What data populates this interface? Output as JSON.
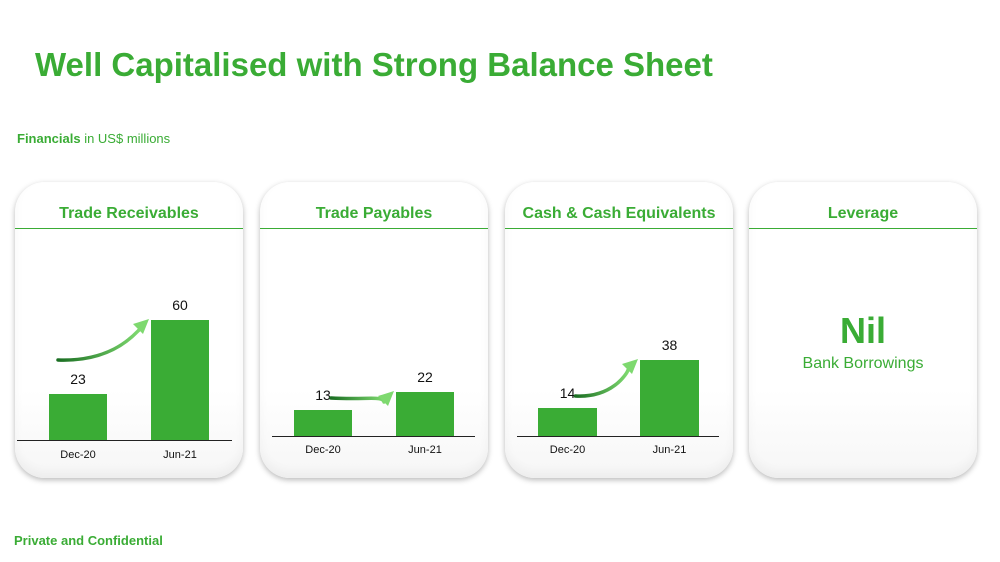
{
  "page": {
    "title": "Well Capitalised with Strong Balance Sheet",
    "subtitle_bold": "Financials",
    "subtitle_rest": " in US$ millions",
    "footer": "Private and Confidential"
  },
  "colors": {
    "accent": "#3aac35",
    "bar": "#3aac35",
    "arrow_dark": "#1a6e22",
    "arrow_light": "#7ed96f"
  },
  "chart_data": [
    {
      "type": "bar",
      "title": "Trade Receivables",
      "categories": [
        "Dec-20",
        "Jun-21"
      ],
      "values": [
        23,
        60
      ],
      "ylim": [
        0,
        75
      ],
      "growth_arrow": true
    },
    {
      "type": "bar",
      "title": "Trade Payables",
      "categories": [
        "Dec-20",
        "Jun-21"
      ],
      "values": [
        13,
        22
      ],
      "ylim": [
        0,
        75
      ],
      "growth_arrow": true
    },
    {
      "type": "bar",
      "title": "Cash & Cash Equivalents",
      "categories": [
        "Dec-20",
        "Jun-21"
      ],
      "values": [
        14,
        38
      ],
      "ylim": [
        0,
        75
      ],
      "growth_arrow": true
    }
  ],
  "leverage": {
    "title": "Leverage",
    "value": "Nil",
    "label": "Bank Borrowings"
  }
}
